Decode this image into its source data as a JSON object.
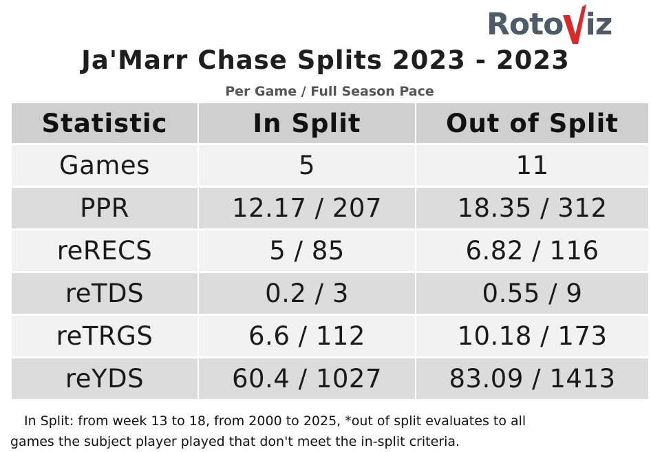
{
  "brand": {
    "logo_text_left": "Roto",
    "logo_text_v": "V",
    "logo_text_right": "iz",
    "logo_gray": "#4e5b69",
    "logo_red": "#d62a2a"
  },
  "chart_data": {
    "type": "table",
    "title": "Ja'Marr Chase Splits 2023 - 2023",
    "subtitle": "Per Game / Full Season Pace",
    "columns": [
      "Statistic",
      "In Split",
      "Out of Split"
    ],
    "rows": [
      [
        "Games",
        "5",
        "11"
      ],
      [
        "PPR",
        "12.17 / 207",
        "18.35 / 312"
      ],
      [
        "reRECS",
        "5 / 85",
        "6.82 / 116"
      ],
      [
        "reTDS",
        "0.2 / 3",
        "0.55 / 9"
      ],
      [
        "reTRGS",
        "6.6 / 112",
        "10.18 / 173"
      ],
      [
        "reYDS",
        "60.4 / 1027",
        "83.09 / 1413"
      ]
    ],
    "header_color": "#cfcfcf",
    "row_colors": [
      "#f2f2f2",
      "#dcdcdc"
    ]
  },
  "footnote": {
    "line1": "In Split: from week 13 to 18, from 2000 to 2025,  *out of split evaluates to all",
    "line2": "games the subject player played that don't meet the in-split criteria."
  }
}
